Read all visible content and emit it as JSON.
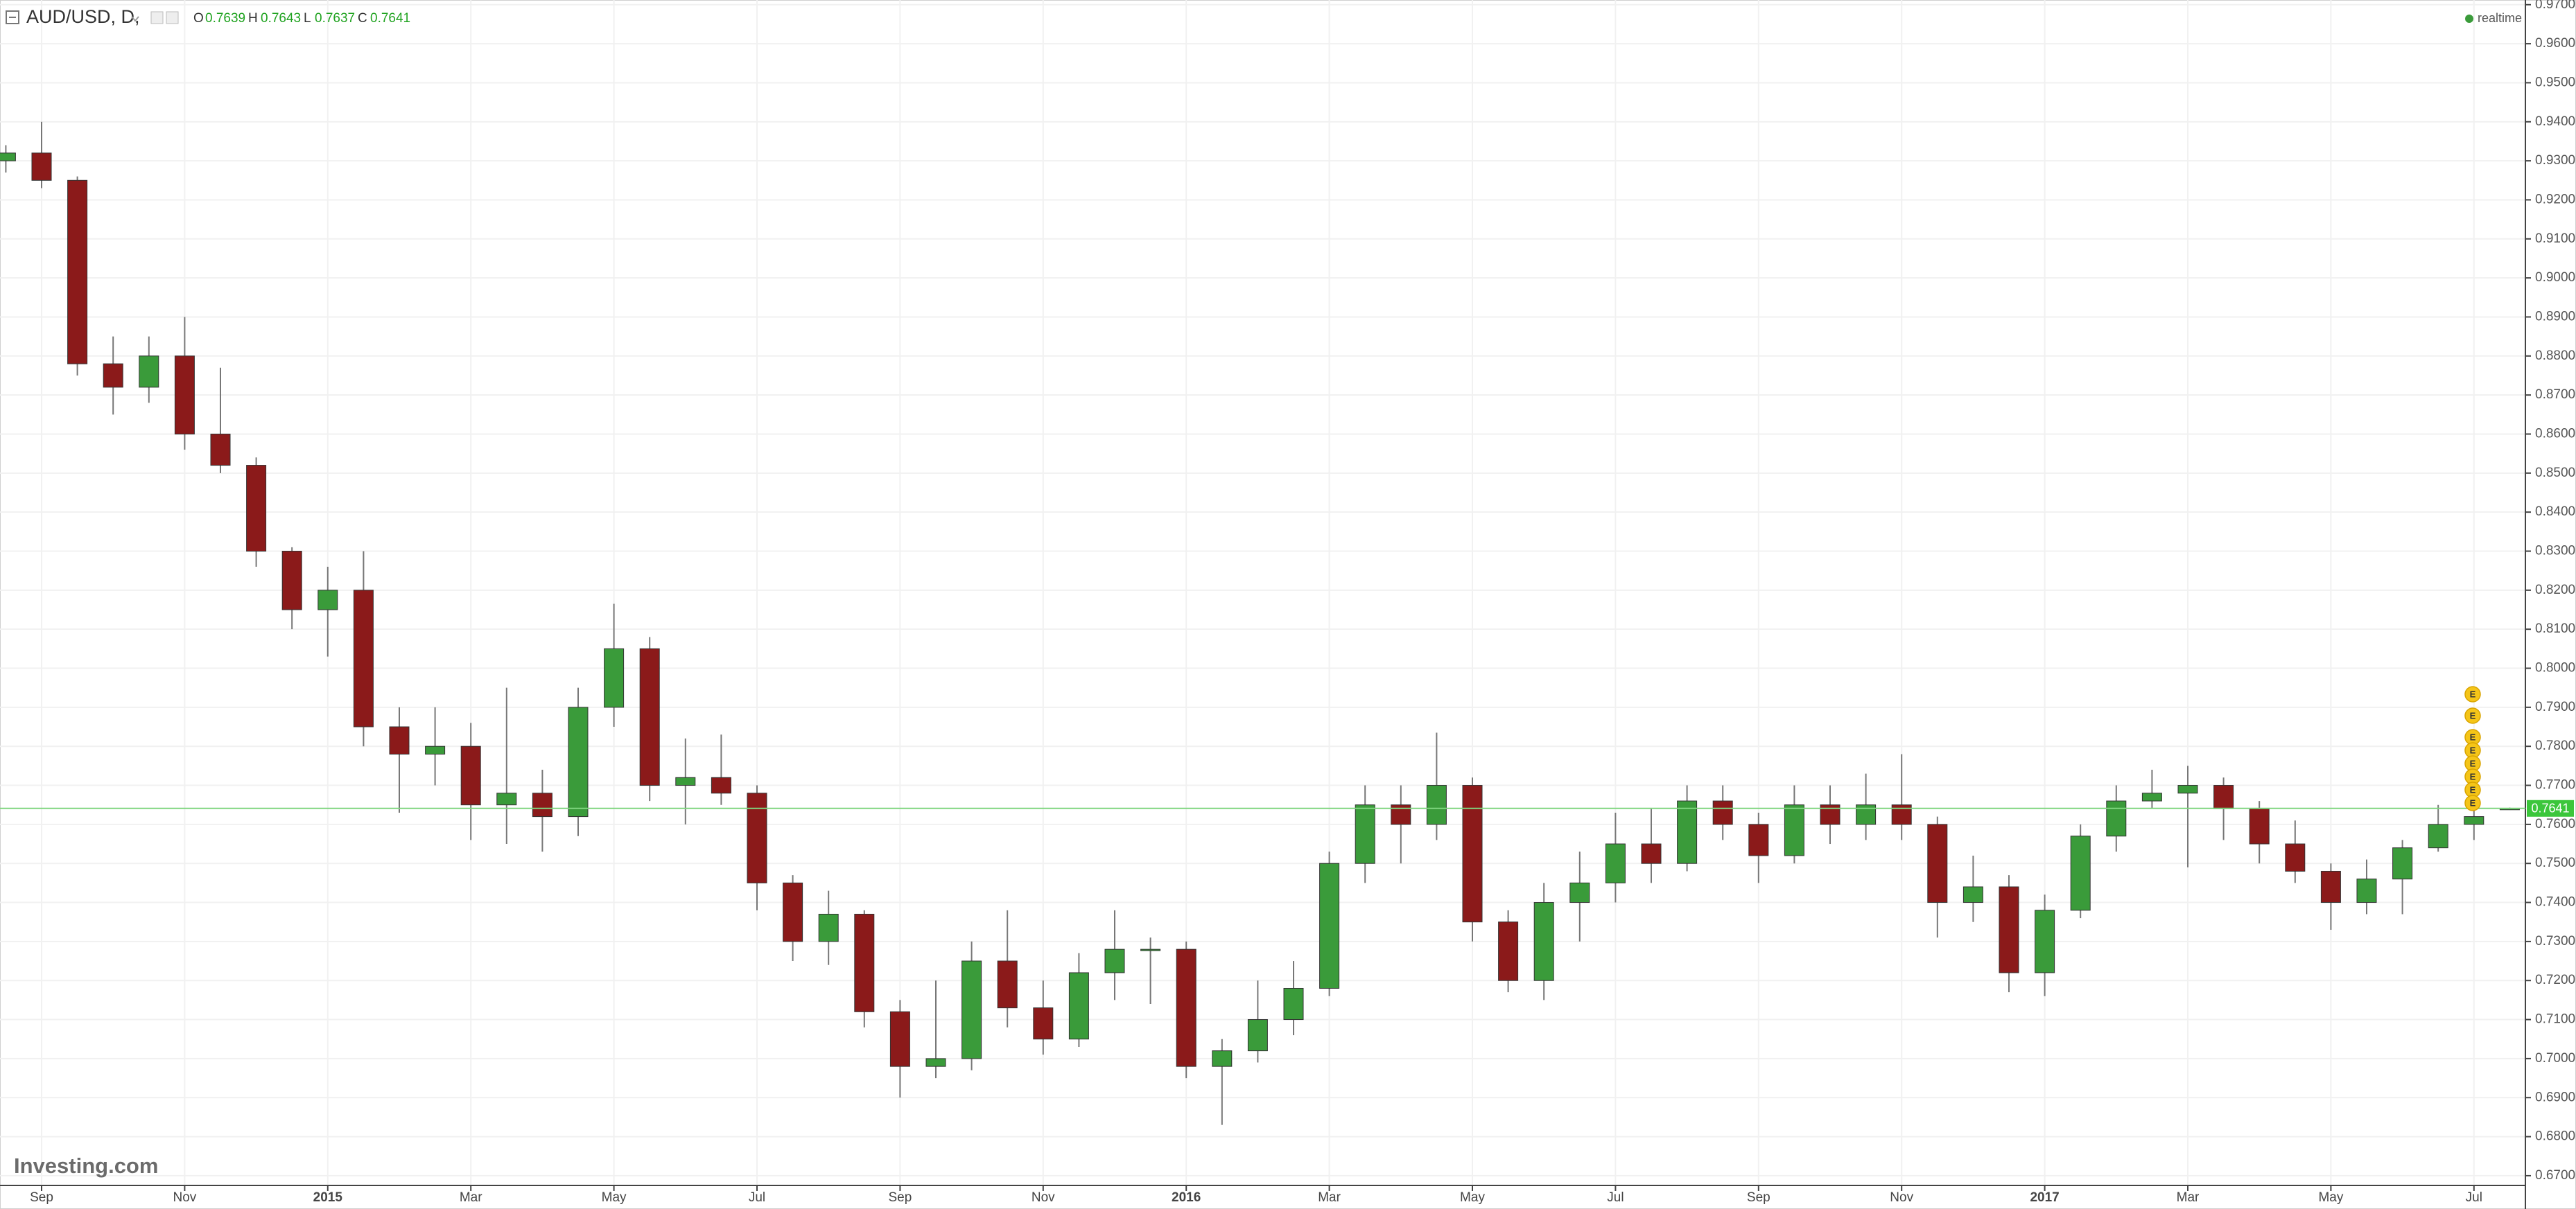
{
  "chart_data": {
    "type": "candlestick",
    "title": "AUD/USD, D,",
    "ohlc_labels": [
      "O",
      "H",
      "L",
      "C"
    ],
    "status": "realtime",
    "watermark": "Investing.com",
    "event_label": "E",
    "categories": [
      null,
      "Sep",
      null,
      null,
      null,
      "Nov",
      null,
      null,
      null,
      "2015",
      null,
      null,
      null,
      "Mar",
      null,
      null,
      null,
      "May",
      null,
      null,
      null,
      "Jul",
      null,
      null,
      null,
      "Sep",
      null,
      null,
      null,
      "Nov",
      null,
      null,
      null,
      "2016",
      null,
      null,
      null,
      "Mar",
      null,
      null,
      null,
      "May",
      null,
      null,
      null,
      "Jul",
      null,
      null,
      null,
      "Sep",
      null,
      null,
      null,
      "Nov",
      null,
      null,
      null,
      "2017",
      null,
      null,
      null,
      "Mar",
      null,
      null,
      null,
      "May",
      null,
      null,
      null,
      "Jul",
      null
    ],
    "open": [
      0.93,
      0.932,
      0.925,
      0.878,
      0.872,
      0.88,
      0.86,
      0.852,
      0.83,
      0.815,
      0.82,
      0.785,
      0.778,
      0.78,
      0.765,
      0.768,
      0.762,
      0.79,
      0.805,
      0.77,
      0.772,
      0.768,
      0.745,
      0.73,
      0.737,
      0.712,
      0.698,
      0.7,
      0.725,
      0.713,
      0.705,
      0.722,
      0.728,
      0.728,
      0.698,
      0.702,
      0.71,
      0.718,
      0.75,
      0.765,
      0.76,
      0.77,
      0.735,
      0.72,
      0.74,
      0.745,
      0.755,
      0.75,
      0.766,
      0.76,
      0.752,
      0.765,
      0.76,
      0.765,
      0.76,
      0.74,
      0.744,
      0.722,
      0.738,
      0.757,
      0.766,
      0.768,
      0.77,
      0.764,
      0.755,
      0.748,
      0.74,
      0.746,
      0.754,
      0.76,
      0.7639
    ],
    "high": [
      0.934,
      0.94,
      0.926,
      0.885,
      0.885,
      0.89,
      0.877,
      0.854,
      0.831,
      0.826,
      0.83,
      0.79,
      0.79,
      0.786,
      0.795,
      0.774,
      0.795,
      0.8165,
      0.808,
      0.782,
      0.783,
      0.77,
      0.747,
      0.743,
      0.738,
      0.715,
      0.72,
      0.73,
      0.738,
      0.72,
      0.727,
      0.738,
      0.731,
      0.73,
      0.705,
      0.72,
      0.725,
      0.753,
      0.77,
      0.77,
      0.7835,
      0.772,
      0.738,
      0.745,
      0.753,
      0.763,
      0.764,
      0.77,
      0.77,
      0.763,
      0.77,
      0.77,
      0.773,
      0.778,
      0.762,
      0.752,
      0.747,
      0.742,
      0.76,
      0.77,
      0.774,
      0.775,
      0.772,
      0.766,
      0.761,
      0.75,
      0.751,
      0.756,
      0.765,
      0.77,
      0.7643
    ],
    "low": [
      0.927,
      0.923,
      0.875,
      0.865,
      0.868,
      0.856,
      0.85,
      0.826,
      0.81,
      0.803,
      0.78,
      0.763,
      0.77,
      0.756,
      0.755,
      0.753,
      0.757,
      0.785,
      0.766,
      0.76,
      0.765,
      0.738,
      0.725,
      0.724,
      0.708,
      0.69,
      0.695,
      0.697,
      0.708,
      0.701,
      0.703,
      0.715,
      0.714,
      0.695,
      0.683,
      0.699,
      0.706,
      0.716,
      0.745,
      0.75,
      0.756,
      0.73,
      0.717,
      0.715,
      0.73,
      0.74,
      0.745,
      0.748,
      0.756,
      0.745,
      0.75,
      0.755,
      0.756,
      0.756,
      0.731,
      0.735,
      0.717,
      0.716,
      0.736,
      0.753,
      0.764,
      0.749,
      0.756,
      0.75,
      0.745,
      0.733,
      0.737,
      0.737,
      0.753,
      0.756,
      0.7637
    ],
    "close": [
      0.932,
      0.925,
      0.878,
      0.872,
      0.88,
      0.86,
      0.852,
      0.83,
      0.815,
      0.82,
      0.785,
      0.778,
      0.78,
      0.765,
      0.768,
      0.762,
      0.79,
      0.805,
      0.77,
      0.772,
      0.768,
      0.745,
      0.73,
      0.737,
      0.712,
      0.698,
      0.7,
      0.725,
      0.713,
      0.705,
      0.722,
      0.728,
      0.728,
      0.698,
      0.702,
      0.71,
      0.718,
      0.75,
      0.765,
      0.76,
      0.77,
      0.735,
      0.72,
      0.74,
      0.745,
      0.755,
      0.75,
      0.766,
      0.76,
      0.752,
      0.765,
      0.76,
      0.765,
      0.76,
      0.74,
      0.744,
      0.722,
      0.738,
      0.757,
      0.766,
      0.768,
      0.77,
      0.764,
      0.755,
      0.748,
      0.74,
      0.746,
      0.754,
      0.76,
      0.762,
      0.7641
    ],
    "up_color": "#3a9b3a",
    "down_color": "#8b1a1a",
    "price_line_color": "#7fd67f",
    "ylim": [
      0.6675,
      0.9712
    ],
    "yticks": [
      {
        "value": 0.67,
        "label": "0.6700"
      },
      {
        "value": 0.68,
        "label": "0.6800"
      },
      {
        "value": 0.69,
        "label": "0.6900"
      },
      {
        "value": 0.7,
        "label": "0.7000"
      },
      {
        "value": 0.71,
        "label": "0.7100"
      },
      {
        "value": 0.72,
        "label": "0.7200"
      },
      {
        "value": 0.73,
        "label": "0.7300"
      },
      {
        "value": 0.74,
        "label": "0.7400"
      },
      {
        "value": 0.75,
        "label": "0.7500"
      },
      {
        "value": 0.76,
        "label": "0.7600"
      },
      {
        "value": 0.77,
        "label": "0.7700"
      },
      {
        "value": 0.78,
        "label": "0.7800"
      },
      {
        "value": 0.79,
        "label": "0.7900"
      },
      {
        "value": 0.8,
        "label": "0.8000"
      },
      {
        "value": 0.81,
        "label": "0.8100"
      },
      {
        "value": 0.82,
        "label": "0.8200"
      },
      {
        "value": 0.83,
        "label": "0.8300"
      },
      {
        "value": 0.84,
        "label": "0.8400"
      },
      {
        "value": 0.85,
        "label": "0.8500"
      },
      {
        "value": 0.86,
        "label": "0.8600"
      },
      {
        "value": 0.87,
        "label": "0.8700"
      },
      {
        "value": 0.88,
        "label": "0.8800"
      },
      {
        "value": 0.89,
        "label": "0.8900"
      },
      {
        "value": 0.9,
        "label": "0.9000"
      },
      {
        "value": 0.91,
        "label": "0.9100"
      },
      {
        "value": 0.92,
        "label": "0.9200"
      },
      {
        "value": 0.93,
        "label": "0.9300"
      },
      {
        "value": 0.94,
        "label": "0.9400"
      },
      {
        "value": 0.95,
        "label": "0.9500"
      },
      {
        "value": 0.96,
        "label": "0.9600"
      },
      {
        "value": 0.97,
        "label": "0.9700"
      }
    ],
    "grid": true
  }
}
